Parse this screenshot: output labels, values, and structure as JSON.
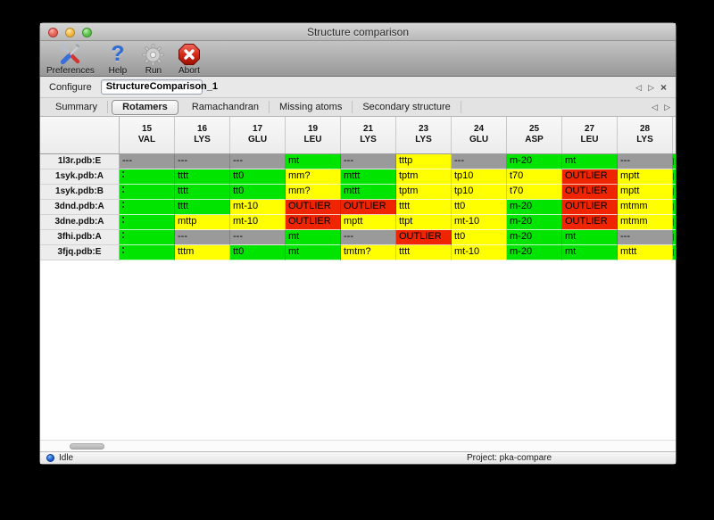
{
  "window": {
    "title": "Structure comparison"
  },
  "toolbar": {
    "items": [
      {
        "label": "Preferences",
        "icon": "tools-icon"
      },
      {
        "label": "Help",
        "icon": "question-icon"
      },
      {
        "label": "Run",
        "icon": "gear-icon"
      },
      {
        "label": "Abort",
        "icon": "stop-icon"
      }
    ]
  },
  "configure": {
    "label": "Configure",
    "session_name": "StructureComparison_1",
    "nav_prev": "◁",
    "nav_next": "▷",
    "close": "×"
  },
  "tabs": {
    "selected": "Rotamers",
    "items": [
      "Summary",
      "Rotamers",
      "Ramachandran",
      "Missing atoms",
      "Secondary structure"
    ],
    "nav_prev": "◁",
    "nav_next": "▷"
  },
  "rotamer_table": {
    "columns": [
      {
        "num": "15",
        "res": "VAL"
      },
      {
        "num": "16",
        "res": "LYS"
      },
      {
        "num": "17",
        "res": "GLU"
      },
      {
        "num": "19",
        "res": "LEU"
      },
      {
        "num": "21",
        "res": "LYS"
      },
      {
        "num": "23",
        "res": "LYS"
      },
      {
        "num": "24",
        "res": "GLU"
      },
      {
        "num": "25",
        "res": "ASP"
      },
      {
        "num": "27",
        "res": "LEU"
      },
      {
        "num": "28",
        "res": "LYS"
      }
    ],
    "legend_colors": {
      "favored": "#00e400",
      "allowed": "#ffff00",
      "outlier": "#ee2500",
      "missing": "#9a9a9a"
    },
    "rows": [
      {
        "label": "1l3r.pdb:E",
        "edge": "favored",
        "cells": [
          [
            "---",
            "missing"
          ],
          [
            "---",
            "missing"
          ],
          [
            "---",
            "missing"
          ],
          [
            "mt",
            "favored"
          ],
          [
            "---",
            "missing"
          ],
          [
            "tttp",
            "allowed"
          ],
          [
            "---",
            "missing"
          ],
          [
            "m-20",
            "favored"
          ],
          [
            "mt",
            "favored"
          ],
          [
            "---",
            "missing"
          ]
        ]
      },
      {
        "label": "1syk.pdb:A",
        "edge": "favored",
        "cells": [
          [
            "",
            "favored"
          ],
          [
            "tttt",
            "favored"
          ],
          [
            "tt0",
            "favored"
          ],
          [
            "mm?",
            "allowed"
          ],
          [
            "mttt",
            "favored"
          ],
          [
            "tptm",
            "allowed"
          ],
          [
            "tp10",
            "allowed"
          ],
          [
            "t70",
            "allowed"
          ],
          [
            "OUTLIER",
            "outlier"
          ],
          [
            "mptt",
            "allowed"
          ]
        ]
      },
      {
        "label": "1syk.pdb:B",
        "edge": "favored",
        "cells": [
          [
            "",
            "favored"
          ],
          [
            "tttt",
            "favored"
          ],
          [
            "tt0",
            "favored"
          ],
          [
            "mm?",
            "allowed"
          ],
          [
            "mttt",
            "favored"
          ],
          [
            "tptm",
            "allowed"
          ],
          [
            "tp10",
            "allowed"
          ],
          [
            "t70",
            "allowed"
          ],
          [
            "OUTLIER",
            "outlier"
          ],
          [
            "mptt",
            "allowed"
          ]
        ]
      },
      {
        "label": "3dnd.pdb:A",
        "edge": "favored",
        "cells": [
          [
            "",
            "favored"
          ],
          [
            "tttt",
            "favored"
          ],
          [
            "mt-10",
            "allowed"
          ],
          [
            "OUTLIER",
            "outlier"
          ],
          [
            "OUTLIER",
            "outlier"
          ],
          [
            "tttt",
            "allowed"
          ],
          [
            "tt0",
            "allowed"
          ],
          [
            "m-20",
            "favored"
          ],
          [
            "OUTLIER",
            "outlier"
          ],
          [
            "mtmm",
            "allowed"
          ]
        ]
      },
      {
        "label": "3dne.pdb:A",
        "edge": "favored",
        "cells": [
          [
            "",
            "favored"
          ],
          [
            "mttp",
            "allowed"
          ],
          [
            "mt-10",
            "allowed"
          ],
          [
            "OUTLIER",
            "outlier"
          ],
          [
            "mptt",
            "allowed"
          ],
          [
            "ttpt",
            "allowed"
          ],
          [
            "mt-10",
            "allowed"
          ],
          [
            "m-20",
            "favored"
          ],
          [
            "OUTLIER",
            "outlier"
          ],
          [
            "mtmm",
            "allowed"
          ]
        ]
      },
      {
        "label": "3fhi.pdb:A",
        "edge": "favored",
        "cells": [
          [
            "",
            "favored"
          ],
          [
            "---",
            "missing"
          ],
          [
            "---",
            "missing"
          ],
          [
            "mt",
            "favored"
          ],
          [
            "---",
            "missing"
          ],
          [
            "OUTLIER",
            "outlier"
          ],
          [
            "tt0",
            "allowed"
          ],
          [
            "m-20",
            "favored"
          ],
          [
            "mt",
            "favored"
          ],
          [
            "---",
            "missing"
          ]
        ]
      },
      {
        "label": "3fjq.pdb:E",
        "edge": "favored",
        "cells": [
          [
            "",
            "favored"
          ],
          [
            "tttm",
            "allowed"
          ],
          [
            "tt0",
            "favored"
          ],
          [
            "mt",
            "favored"
          ],
          [
            "tmtm?",
            "allowed"
          ],
          [
            "tttt",
            "allowed"
          ],
          [
            "mt-10",
            "allowed"
          ],
          [
            "m-20",
            "favored"
          ],
          [
            "mt",
            "favored"
          ],
          [
            "mttt",
            "allowed"
          ]
        ]
      }
    ]
  },
  "statusbar": {
    "status": "Idle",
    "project": "Project: pka-compare"
  }
}
